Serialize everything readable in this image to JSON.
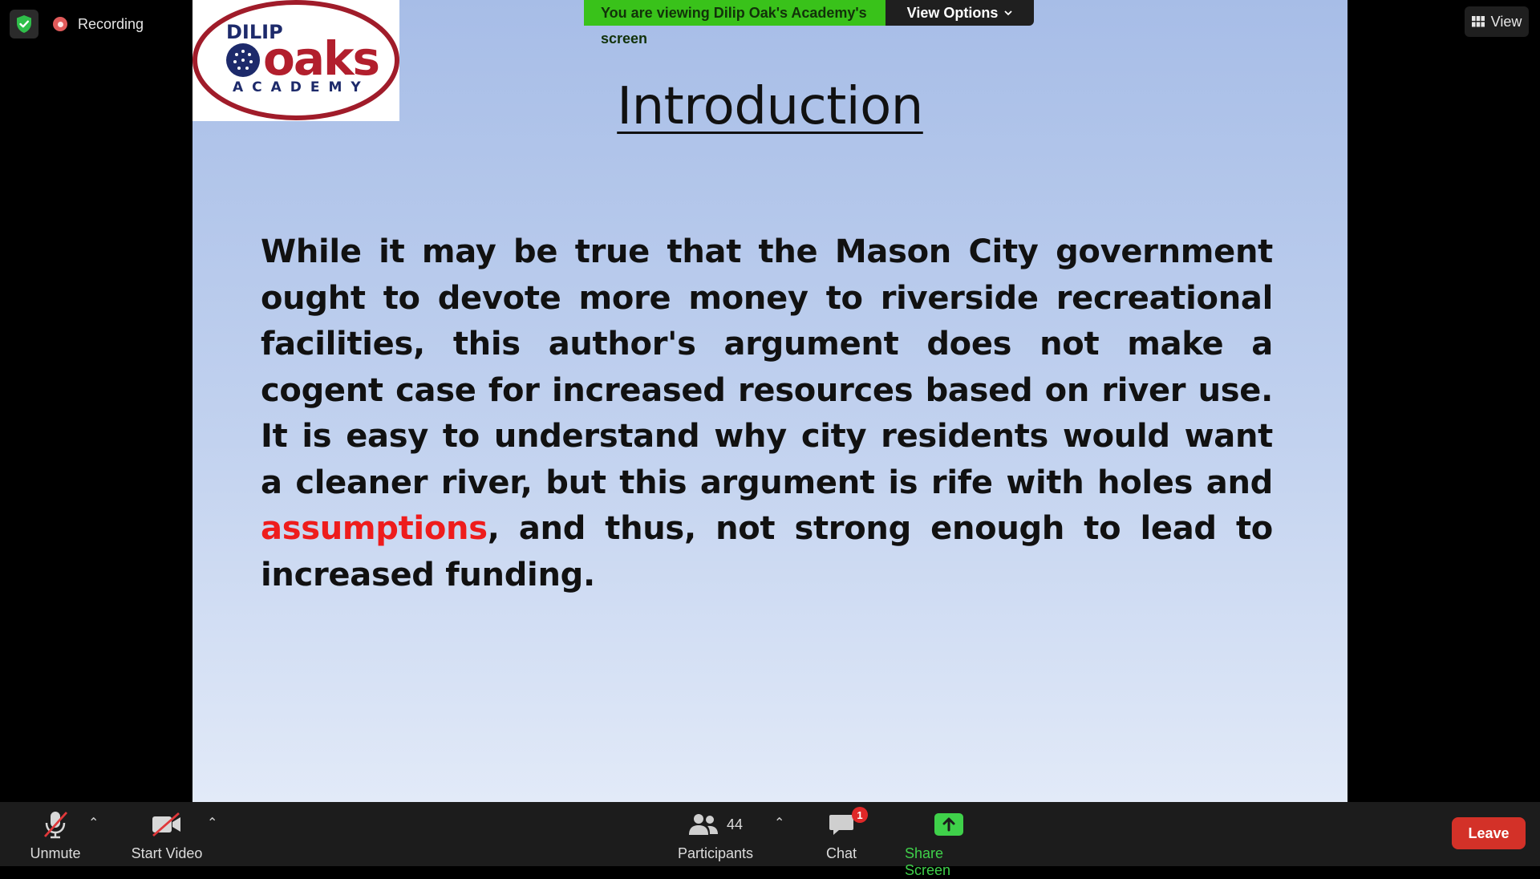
{
  "status": {
    "recording_label": "Recording"
  },
  "top_right": {
    "view_label": "View"
  },
  "banner": {
    "viewing_text": "You are viewing Dilip Oak's Academy's screen",
    "view_options_label": "View Options"
  },
  "slide": {
    "logo": {
      "top_text": "DILIP",
      "brand_text": "oaks",
      "bottom_text": "ACADEMY"
    },
    "title": "Introduction",
    "body_before": "While it may be true that the Mason City government ought to devote more money to riverside recreational facilities, this author's argument does not make a cogent case for increased resources based on river use. It is easy to understand why city residents would want a cleaner river, but this argument is rife with holes and ",
    "body_highlight": "assumptions",
    "body_after": ", and thus, not strong enough to lead to increased funding.",
    "highlight_color": "#ee1c1c"
  },
  "toolbar": {
    "unmute_label": "Unmute",
    "start_video_label": "Start Video",
    "participants_label": "Participants",
    "participants_count": "44",
    "chat_label": "Chat",
    "chat_badge": "1",
    "share_screen_label": "Share Screen",
    "leave_label": "Leave",
    "share_color": "#3fd14a",
    "leave_color": "#d33128"
  }
}
